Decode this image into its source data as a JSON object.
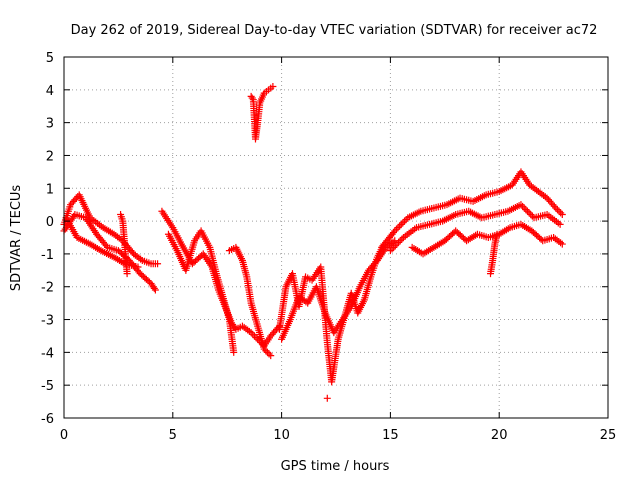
{
  "chart_data": {
    "type": "scatter",
    "title": "Day 262 of 2019, Sidereal Day-to-day VTEC variation (SDTVAR) for receiver ac72",
    "xlabel": "GPS time / hours",
    "ylabel": "SDTVAR / TECUs",
    "xlim": [
      0,
      25
    ],
    "ylim": [
      -6,
      5
    ],
    "x_ticks": [
      0,
      5,
      10,
      15,
      20,
      25
    ],
    "y_ticks": [
      -6,
      -5,
      -4,
      -3,
      -2,
      -1,
      0,
      1,
      2,
      3,
      4,
      5
    ],
    "grid": true,
    "marker": "+",
    "series": [
      {
        "name": "SDTVAR",
        "color": "#ff0000",
        "tracks": [
          {
            "x": [
              0.0,
              0.3,
              0.7,
              1.2,
              1.8,
              2.3,
              2.7,
              3.2,
              3.6,
              4.0,
              4.3
            ],
            "y": [
              -0.1,
              0.5,
              0.8,
              0.1,
              -0.2,
              -0.4,
              -0.6,
              -1.0,
              -1.2,
              -1.3,
              -1.3
            ]
          },
          {
            "x": [
              0.0,
              0.5,
              1.0,
              1.5,
              2.0,
              2.5,
              3.0,
              3.5,
              4.0,
              4.2
            ],
            "y": [
              -0.3,
              0.2,
              0.1,
              -0.4,
              -0.8,
              -0.9,
              -1.2,
              -1.6,
              -1.9,
              -2.1
            ]
          },
          {
            "x": [
              0.1,
              0.6,
              1.2,
              1.7,
              2.3,
              2.8,
              3.4
            ],
            "y": [
              0.1,
              -0.5,
              -0.7,
              -0.9,
              -1.1,
              -1.3,
              -1.4
            ]
          },
          {
            "x": [
              2.6,
              2.7,
              2.8,
              2.9
            ],
            "y": [
              0.2,
              0.0,
              -0.8,
              -1.6
            ]
          },
          {
            "x": [
              4.5,
              5.0,
              5.4,
              5.9,
              6.4,
              6.8,
              7.1,
              7.4,
              7.7,
              7.9,
              8.2,
              8.6,
              8.9,
              9.2,
              9.5,
              9.9
            ],
            "y": [
              0.3,
              -0.2,
              -0.7,
              -1.3,
              -1.0,
              -1.4,
              -2.1,
              -2.6,
              -3.1,
              -3.3,
              -3.2,
              -3.4,
              -3.6,
              -3.8,
              -3.5,
              -3.2
            ]
          },
          {
            "x": [
              4.8,
              5.2,
              5.6,
              6.0,
              6.3,
              6.7,
              7.0,
              7.3,
              7.6,
              7.8
            ],
            "y": [
              -0.4,
              -0.9,
              -1.5,
              -0.6,
              -0.3,
              -0.8,
              -1.6,
              -2.3,
              -3.0,
              -4.0
            ]
          },
          {
            "x": [
              7.6,
              7.9,
              8.2,
              8.4,
              8.6,
              8.9,
              9.2,
              9.5
            ],
            "y": [
              -0.9,
              -0.8,
              -1.2,
              -1.7,
              -2.5,
              -3.2,
              -3.9,
              -4.1
            ]
          },
          {
            "x": [
              8.6,
              8.7,
              8.8,
              8.9,
              9.0,
              9.2,
              9.4,
              9.6
            ],
            "y": [
              3.8,
              3.7,
              2.5,
              3.0,
              3.6,
              3.9,
              4.0,
              4.1
            ]
          },
          {
            "x": [
              9.9,
              10.2,
              10.5,
              10.8,
              11.1,
              11.4,
              11.8,
              12.1,
              12.3,
              12.6,
              12.9,
              13.2,
              13.5,
              13.8,
              14.1,
              14.4,
              14.7
            ],
            "y": [
              -3.3,
              -2.0,
              -1.6,
              -2.6,
              -1.7,
              -1.8,
              -1.4,
              -3.7,
              -4.9,
              -3.6,
              -2.9,
              -2.2,
              -2.8,
              -2.4,
              -1.7,
              -1.1,
              -0.7
            ]
          },
          {
            "x": [
              10.0,
              10.4,
              10.8,
              11.2,
              11.6,
              12.0,
              12.4,
              12.8,
              13.2,
              13.6,
              14.0,
              14.4,
              14.8,
              15.2
            ],
            "y": [
              -3.6,
              -3.0,
              -2.3,
              -2.5,
              -2.0,
              -2.8,
              -3.4,
              -3.0,
              -2.6,
              -2.0,
              -1.5,
              -1.2,
              -0.8,
              -0.6
            ]
          },
          {
            "x": [
              12.1
            ],
            "y": [
              -5.4
            ]
          },
          {
            "x": [
              14.6,
              15.2,
              15.8,
              16.4,
              17.0,
              17.6,
              18.2,
              18.8,
              19.4,
              20.0,
              20.6,
              21.0,
              21.4,
              21.8,
              22.2,
              22.6,
              22.9
            ],
            "y": [
              -0.8,
              -0.3,
              0.1,
              0.3,
              0.4,
              0.5,
              0.7,
              0.6,
              0.8,
              0.9,
              1.1,
              1.5,
              1.1,
              0.9,
              0.7,
              0.4,
              0.2
            ]
          },
          {
            "x": [
              15.0,
              15.6,
              16.2,
              16.8,
              17.4,
              18.0,
              18.6,
              19.2,
              19.8,
              20.4,
              21.0,
              21.6,
              22.2,
              22.8
            ],
            "y": [
              -0.9,
              -0.5,
              -0.2,
              -0.1,
              0.0,
              0.2,
              0.3,
              0.1,
              0.2,
              0.3,
              0.5,
              0.1,
              0.2,
              -0.1
            ]
          },
          {
            "x": [
              16.0,
              16.5,
              17.0,
              17.5,
              18.0,
              18.5,
              19.0,
              19.5,
              20.0,
              20.5,
              21.0,
              21.5,
              22.0,
              22.5,
              22.9
            ],
            "y": [
              -0.8,
              -1.0,
              -0.8,
              -0.6,
              -0.3,
              -0.6,
              -0.4,
              -0.5,
              -0.4,
              -0.2,
              -0.1,
              -0.3,
              -0.6,
              -0.5,
              -0.7
            ]
          },
          {
            "x": [
              19.6,
              19.7,
              19.8,
              19.9
            ],
            "y": [
              -1.6,
              -1.2,
              -0.7,
              -0.4
            ]
          }
        ]
      }
    ]
  }
}
